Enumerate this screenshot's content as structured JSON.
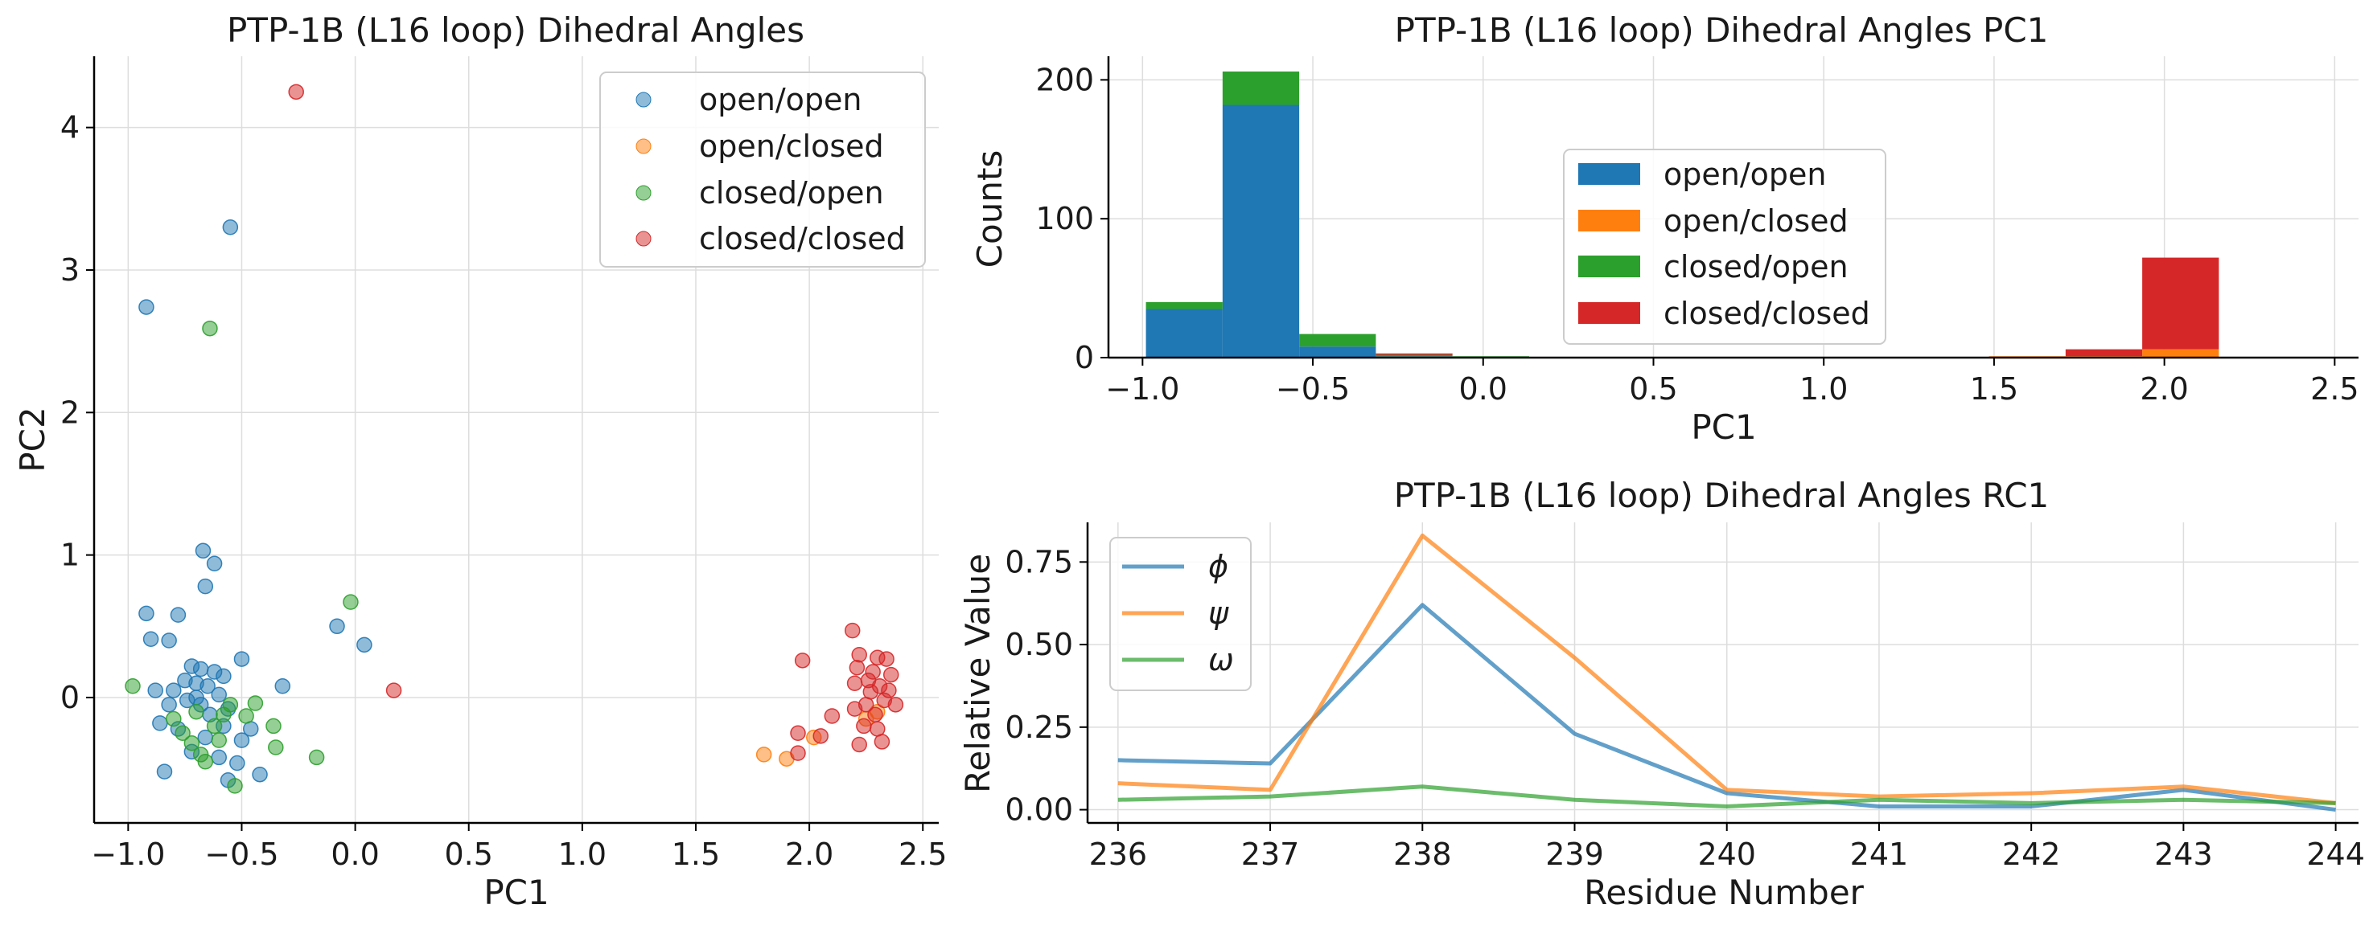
{
  "chart_data": [
    {
      "type": "scatter",
      "title": "PTP-1B (L16 loop) Dihedral Angles",
      "xlabel": "PC1",
      "ylabel": "PC2",
      "xlim": [
        -1.15,
        2.57
      ],
      "ylim": [
        -0.88,
        4.5
      ],
      "xticks": [
        -1.0,
        -0.5,
        0.0,
        0.5,
        1.0,
        1.5,
        2.0,
        2.5
      ],
      "xtick_labels": [
        "−1.0",
        "−0.5",
        "0.0",
        "0.5",
        "1.0",
        "1.5",
        "2.0",
        "2.5"
      ],
      "yticks": [
        0,
        1,
        2,
        3,
        4
      ],
      "ytick_labels": [
        "0",
        "1",
        "2",
        "3",
        "4"
      ],
      "grid": true,
      "legend": "top-right",
      "series": [
        {
          "name": "open/open",
          "color": "#1f77b4",
          "points": [
            [
              -0.55,
              3.3
            ],
            [
              -0.92,
              2.74
            ],
            [
              -0.67,
              1.03
            ],
            [
              -0.62,
              0.94
            ],
            [
              -0.66,
              0.78
            ],
            [
              -0.92,
              0.59
            ],
            [
              -0.78,
              0.58
            ],
            [
              -0.9,
              0.41
            ],
            [
              -0.82,
              0.4
            ],
            [
              -0.08,
              0.5
            ],
            [
              0.04,
              0.37
            ],
            [
              -0.32,
              0.08
            ],
            [
              -0.5,
              0.27
            ],
            [
              -0.72,
              0.22
            ],
            [
              -0.68,
              0.2
            ],
            [
              -0.62,
              0.18
            ],
            [
              -0.58,
              0.15
            ],
            [
              -0.75,
              0.12
            ],
            [
              -0.7,
              0.1
            ],
            [
              -0.65,
              0.08
            ],
            [
              -0.8,
              0.05
            ],
            [
              -0.6,
              0.02
            ],
            [
              -0.74,
              -0.02
            ],
            [
              -0.68,
              -0.05
            ],
            [
              -0.56,
              -0.08
            ],
            [
              -0.86,
              -0.18
            ],
            [
              -0.78,
              -0.22
            ],
            [
              -0.66,
              -0.28
            ],
            [
              -0.5,
              -0.3
            ],
            [
              -0.72,
              -0.38
            ],
            [
              -0.6,
              -0.42
            ],
            [
              -0.52,
              -0.46
            ],
            [
              -0.56,
              -0.58
            ],
            [
              -0.84,
              -0.52
            ],
            [
              -0.42,
              -0.54
            ],
            [
              -0.46,
              -0.22
            ],
            [
              -0.7,
              0.0
            ],
            [
              -0.64,
              -0.12
            ],
            [
              -0.82,
              -0.05
            ],
            [
              -0.58,
              -0.2
            ],
            [
              -0.88,
              0.05
            ]
          ]
        },
        {
          "name": "open/closed",
          "color": "#ff7f0e",
          "points": [
            [
              1.8,
              -0.4
            ],
            [
              1.9,
              -0.43
            ],
            [
              2.02,
              -0.28
            ],
            [
              2.25,
              -0.15
            ],
            [
              2.3,
              -0.1
            ]
          ]
        },
        {
          "name": "closed/open",
          "color": "#2ca02c",
          "points": [
            [
              -0.64,
              2.59
            ],
            [
              -0.02,
              0.67
            ],
            [
              -0.98,
              0.08
            ],
            [
              -0.44,
              -0.04
            ],
            [
              -0.48,
              -0.13
            ],
            [
              -0.36,
              -0.2
            ],
            [
              -0.17,
              -0.42
            ],
            [
              -0.53,
              -0.62
            ],
            [
              -0.35,
              -0.35
            ],
            [
              -0.7,
              -0.1
            ],
            [
              -0.76,
              -0.25
            ],
            [
              -0.6,
              -0.3
            ],
            [
              -0.66,
              -0.45
            ],
            [
              -0.8,
              -0.15
            ],
            [
              -0.55,
              -0.05
            ],
            [
              -0.72,
              -0.32
            ],
            [
              -0.62,
              -0.2
            ],
            [
              -0.68,
              -0.4
            ],
            [
              -0.58,
              -0.12
            ]
          ]
        },
        {
          "name": "closed/closed",
          "color": "#d62728",
          "points": [
            [
              -0.26,
              4.25
            ],
            [
              0.17,
              0.05
            ],
            [
              1.97,
              0.26
            ],
            [
              2.19,
              0.47
            ],
            [
              2.22,
              0.3
            ],
            [
              2.3,
              0.28
            ],
            [
              2.34,
              0.27
            ],
            [
              2.36,
              0.16
            ],
            [
              2.2,
              0.1
            ],
            [
              2.27,
              0.04
            ],
            [
              2.33,
              -0.02
            ],
            [
              2.2,
              -0.08
            ],
            [
              2.1,
              -0.13
            ],
            [
              2.3,
              -0.22
            ],
            [
              2.22,
              -0.33
            ],
            [
              2.32,
              -0.31
            ],
            [
              1.95,
              -0.25
            ],
            [
              2.05,
              -0.27
            ],
            [
              1.95,
              -0.39
            ],
            [
              2.28,
              0.18
            ],
            [
              2.25,
              -0.05
            ],
            [
              2.35,
              0.05
            ],
            [
              2.21,
              0.21
            ],
            [
              2.29,
              -0.12
            ],
            [
              2.38,
              -0.05
            ],
            [
              2.26,
              0.12
            ],
            [
              2.31,
              0.08
            ],
            [
              2.24,
              -0.2
            ]
          ]
        }
      ]
    },
    {
      "type": "bar",
      "subtype": "stacked-histogram",
      "title": "PTP-1B (L16 loop) Dihedral Angles PC1",
      "xlabel": "PC1",
      "ylabel": "Counts",
      "xlim": [
        -1.1,
        2.57
      ],
      "ylim": [
        0,
        217
      ],
      "xticks": [
        -1.0,
        -0.5,
        0.0,
        0.5,
        1.0,
        1.5,
        2.0,
        2.5
      ],
      "xtick_labels": [
        "−1.0",
        "−0.5",
        "0.0",
        "0.5",
        "1.0",
        "1.5",
        "2.0",
        "2.5"
      ],
      "yticks": [
        0,
        100,
        200
      ],
      "ytick_labels": [
        "0",
        "100",
        "200"
      ],
      "grid": true,
      "legend": "center",
      "bin_edges": [
        -0.99,
        -0.765,
        -0.54,
        -0.315,
        -0.09,
        0.135,
        0.36,
        0.585,
        0.81,
        1.035,
        1.26,
        1.485,
        1.71,
        1.935,
        2.16,
        2.385
      ],
      "series": [
        {
          "name": "open/open",
          "color": "#1f77b4",
          "values": [
            35,
            182,
            8,
            1,
            0,
            0,
            0,
            0,
            0,
            0,
            0,
            0,
            0,
            0,
            0
          ]
        },
        {
          "name": "open/closed",
          "color": "#ff7f0e",
          "values": [
            0,
            0,
            0,
            0,
            0,
            0,
            0,
            0,
            0,
            0,
            0,
            1,
            1,
            6,
            0
          ]
        },
        {
          "name": "closed/open",
          "color": "#2ca02c",
          "values": [
            5,
            24,
            9,
            1,
            1,
            0,
            0,
            0,
            0,
            0,
            0,
            0,
            0,
            0,
            0
          ]
        },
        {
          "name": "closed/closed",
          "color": "#d62728",
          "values": [
            0,
            0,
            0,
            1,
            0,
            0,
            0,
            0,
            0,
            0,
            0,
            0,
            5,
            66,
            0
          ]
        }
      ]
    },
    {
      "type": "line",
      "title": "PTP-1B (L16 loop) Dihedral Angles RC1",
      "xlabel": "Residue Number",
      "ylabel": "Relative Value",
      "x": [
        236,
        237,
        238,
        239,
        240,
        241,
        242,
        243,
        244
      ],
      "xlim": [
        235.8,
        244.15
      ],
      "ylim": [
        -0.04,
        0.87
      ],
      "xticks": [
        236,
        237,
        238,
        239,
        240,
        241,
        242,
        243,
        244
      ],
      "xtick_labels": [
        "236",
        "237",
        "238",
        "239",
        "240",
        "241",
        "242",
        "243",
        "244"
      ],
      "yticks": [
        0.0,
        0.25,
        0.5,
        0.75
      ],
      "ytick_labels": [
        "0.00",
        "0.25",
        "0.50",
        "0.75"
      ],
      "grid": true,
      "legend": "top-left",
      "series": [
        {
          "name": "ϕ",
          "color": "#1f77b4",
          "values": [
            0.15,
            0.14,
            0.62,
            0.23,
            0.05,
            0.01,
            0.01,
            0.06,
            0.0
          ]
        },
        {
          "name": "ψ",
          "color": "#ff7f0e",
          "values": [
            0.08,
            0.06,
            0.83,
            0.46,
            0.06,
            0.04,
            0.05,
            0.07,
            0.02
          ]
        },
        {
          "name": "ω",
          "color": "#2ca02c",
          "values": [
            0.03,
            0.04,
            0.07,
            0.03,
            0.01,
            0.03,
            0.02,
            0.03,
            0.02
          ]
        }
      ]
    }
  ]
}
